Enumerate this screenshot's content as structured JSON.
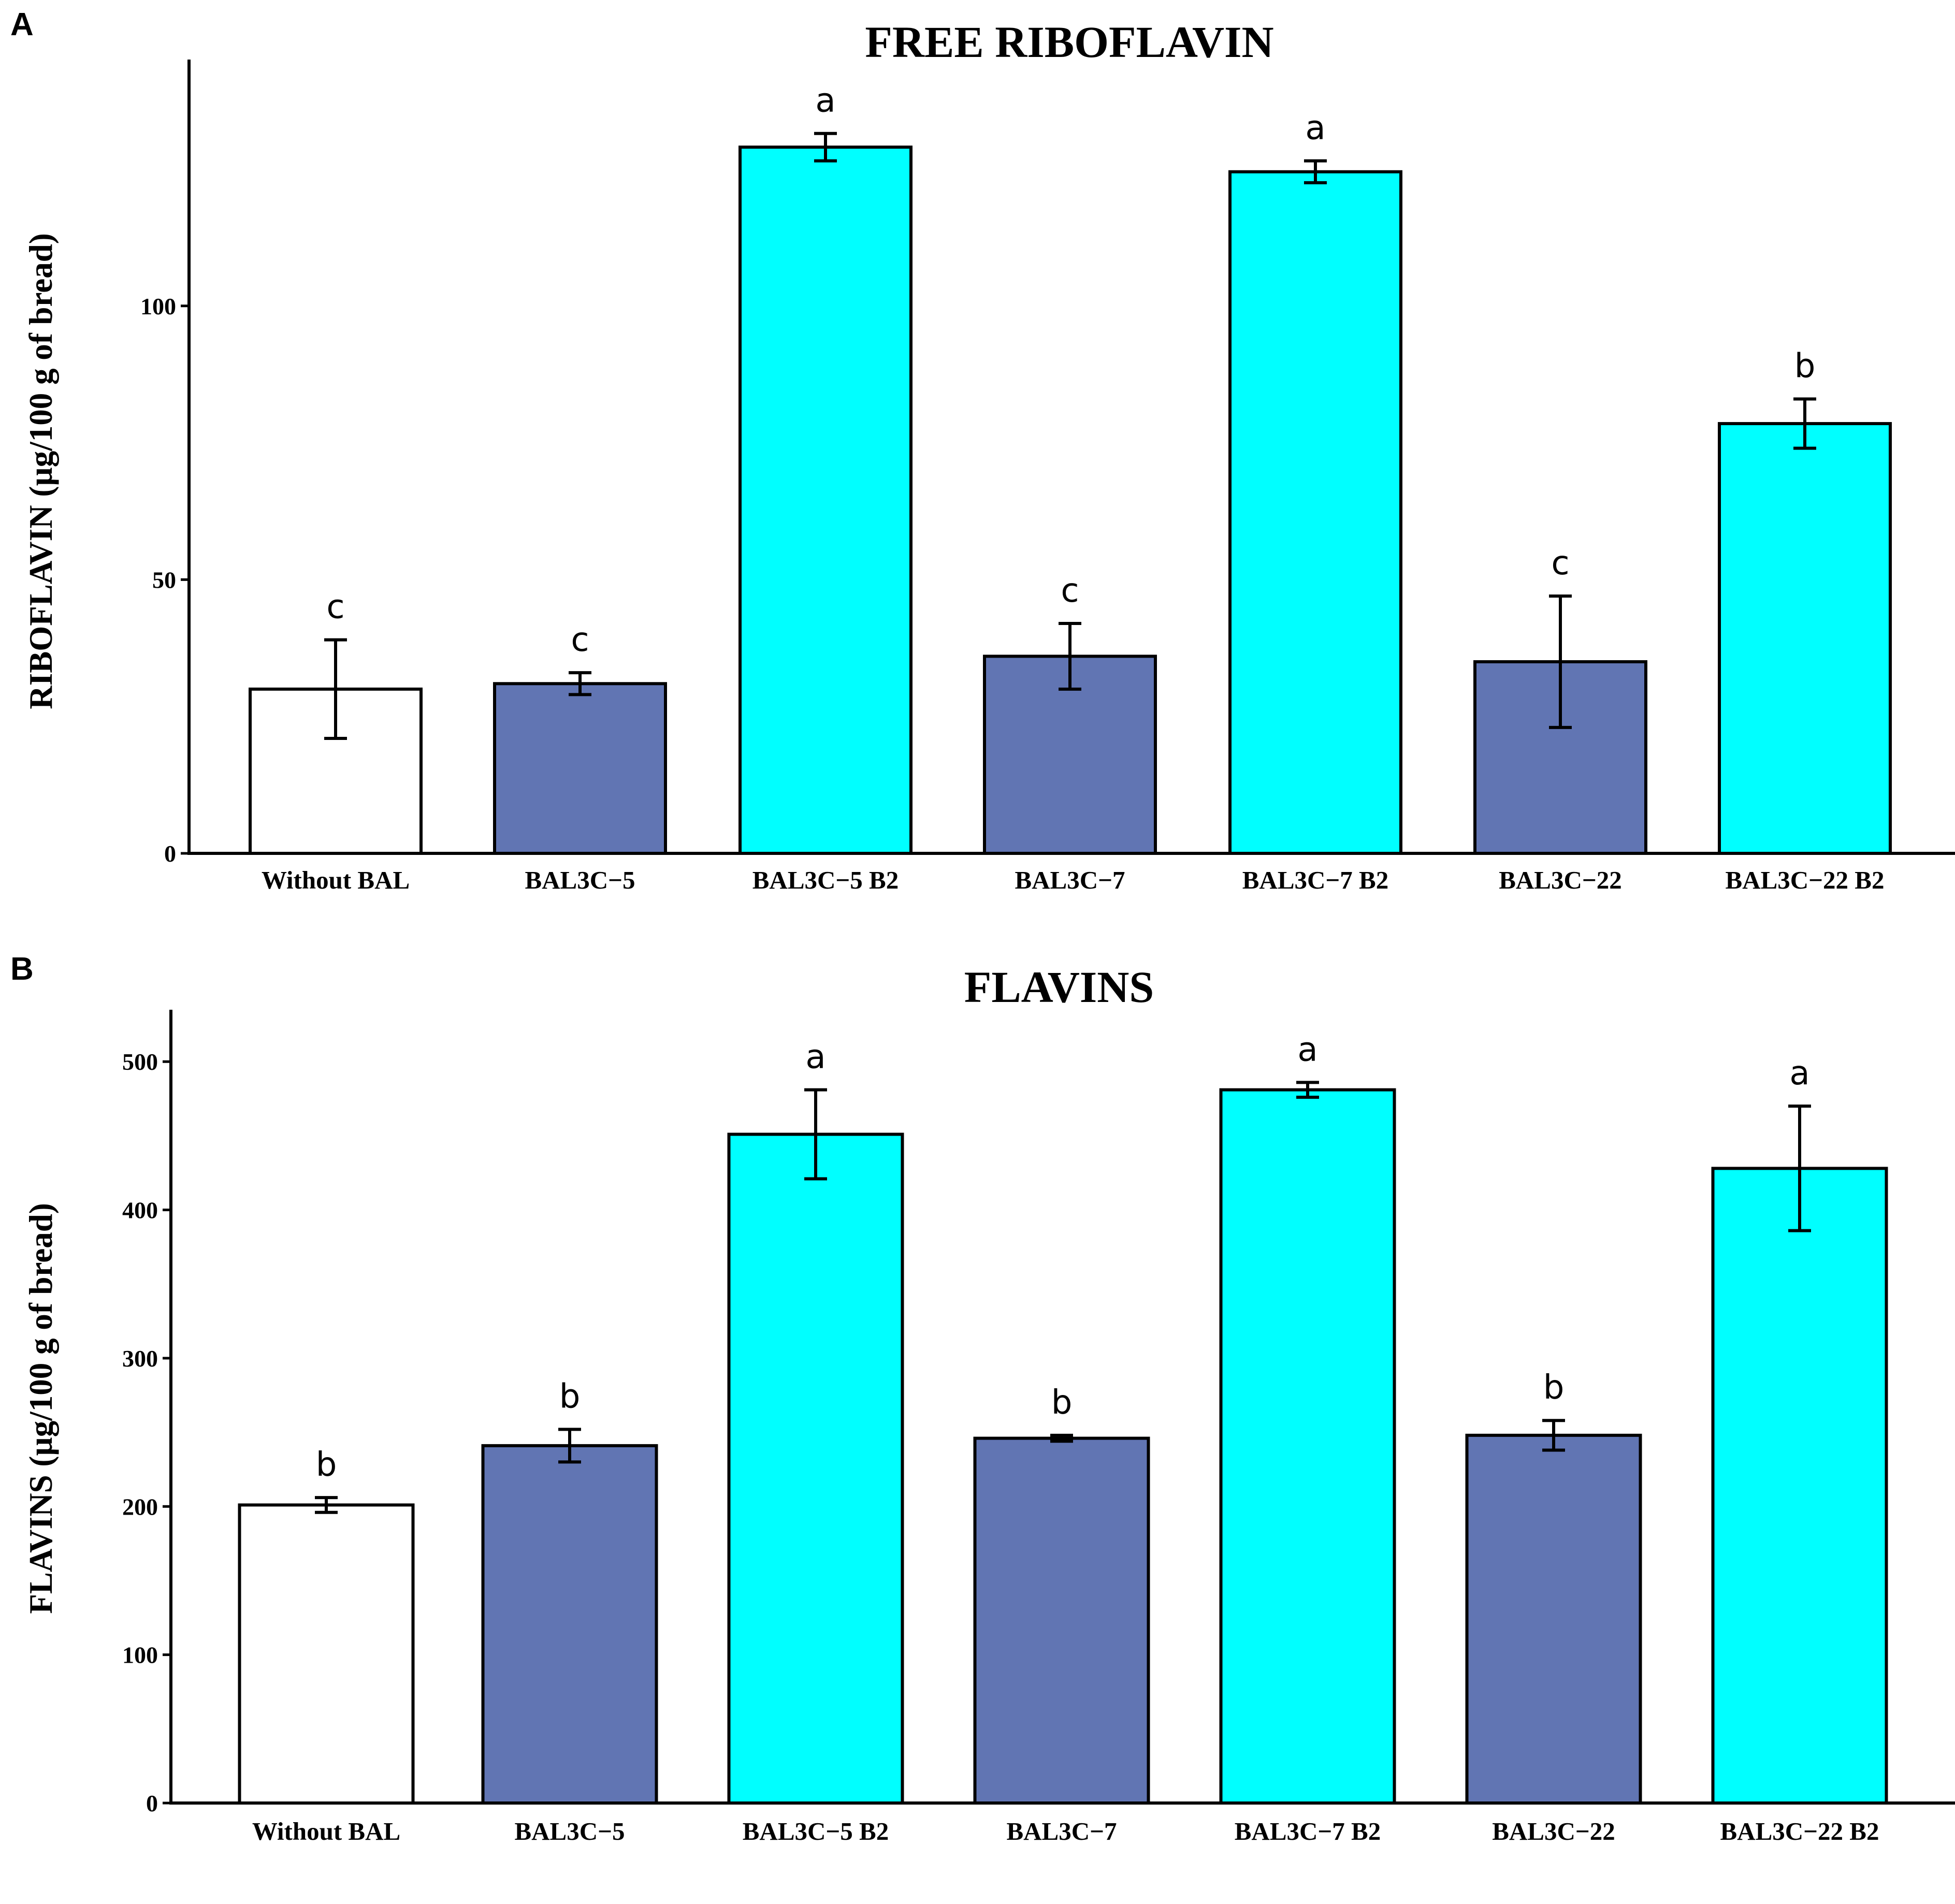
{
  "colors": {
    "control": "#ffffff",
    "strain": "#6175b3",
    "strain_b2": "#00ffff",
    "stroke": "#000000"
  },
  "chart_data": [
    {
      "panel": "A",
      "type": "bar",
      "title": "FREE RIBOFLAVIN",
      "xlabel": "",
      "ylabel": "RIBOFLAVIN (µg/100 g of bread)",
      "ylim": [
        0,
        145
      ],
      "yticks": [
        0,
        50,
        100
      ],
      "categories": [
        "Without BAL",
        "BAL3C−5",
        "BAL3C−5 B2",
        "BAL3C−7",
        "BAL3C−7 B2",
        "BAL3C−22",
        "BAL3C−22 B2"
      ],
      "values": [
        30,
        31,
        129,
        36,
        124.5,
        35,
        78.5
      ],
      "errors": [
        9,
        2,
        2.5,
        6,
        2,
        12,
        4.5
      ],
      "letters": [
        "c",
        "c",
        "a",
        "c",
        "a",
        "c",
        "b"
      ],
      "color_keys": [
        "control",
        "strain",
        "strain_b2",
        "strain",
        "strain_b2",
        "strain",
        "strain_b2"
      ]
    },
    {
      "panel": "B",
      "type": "bar",
      "title": "FLAVINS",
      "xlabel": "",
      "ylabel": "FLAVINS (µg/100 g of bread)",
      "ylim": [
        0,
        535
      ],
      "yticks": [
        0,
        100,
        200,
        300,
        400,
        500
      ],
      "categories": [
        "Without BAL",
        "BAL3C−5",
        "BAL3C−5 B2",
        "BAL3C−7",
        "BAL3C−7 B2",
        "BAL3C−22",
        "BAL3C−22 B2"
      ],
      "values": [
        201,
        241,
        451,
        246,
        481,
        248,
        428
      ],
      "errors": [
        5,
        11,
        30,
        2,
        5,
        10,
        42
      ],
      "letters": [
        "b",
        "b",
        "a",
        "b",
        "a",
        "b",
        "a"
      ],
      "color_keys": [
        "control",
        "strain",
        "strain_b2",
        "strain",
        "strain_b2",
        "strain",
        "strain_b2"
      ]
    }
  ]
}
